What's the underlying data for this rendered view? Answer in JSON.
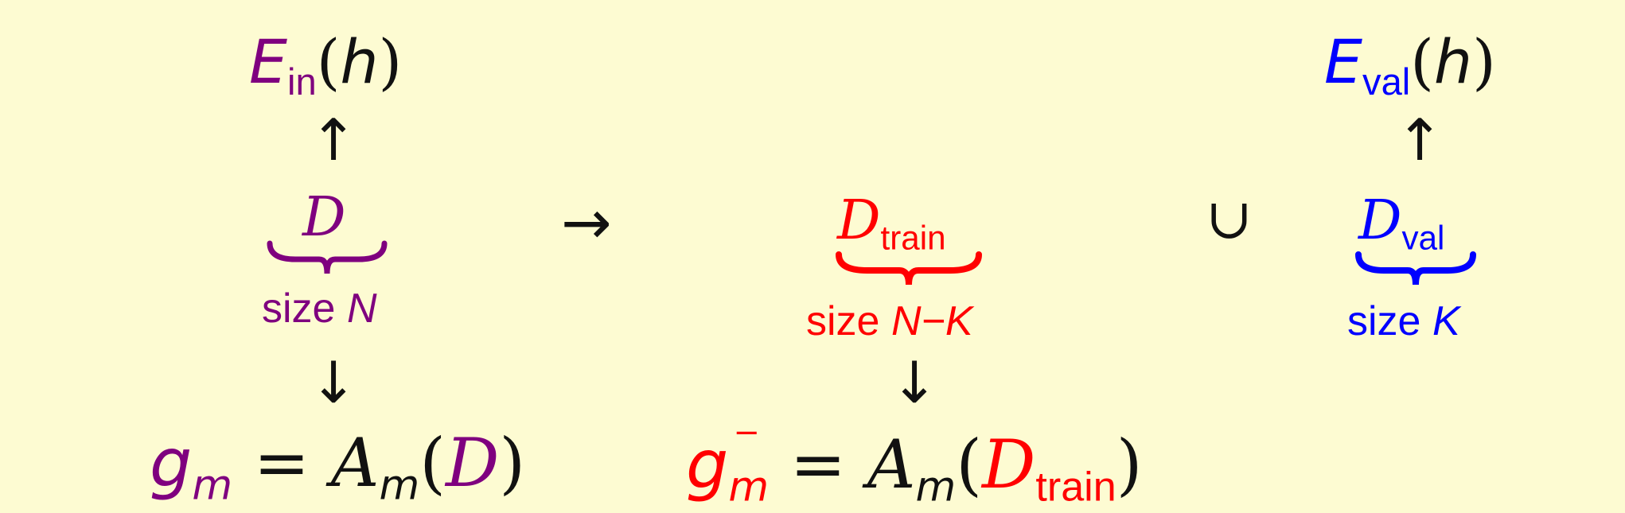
{
  "left": {
    "top_E": "E",
    "top_sub": "in",
    "top_arg": "h",
    "D": "D",
    "size_word": "size",
    "size_var": "N",
    "bottom_g": "g",
    "bottom_m": "m",
    "bottom_A": "A",
    "bottom_Am": "m",
    "bottom_D": "D"
  },
  "middle": {
    "D": "D",
    "D_sub": "train",
    "size_word": "size",
    "size_var": "N−K",
    "bottom_g": "g",
    "bottom_m": "m",
    "bottom_minus": "−",
    "bottom_A": "A",
    "bottom_Am": "m",
    "bottom_D": "D",
    "bottom_Dsub": "train"
  },
  "right": {
    "top_E": "E",
    "top_sub": "val",
    "top_arg": "h",
    "D": "D",
    "D_sub": "val",
    "size_word": "size",
    "size_var": "K"
  },
  "symbols": {
    "up_arrow": "↑",
    "down_arrow": "↓",
    "right_arrow": "→",
    "union": "∪",
    "equals": "=",
    "open_paren": "(",
    "close_paren": ")"
  },
  "colors": {
    "background": "#fdfbd2",
    "full_data": "#7f007f",
    "train": "#ff0000",
    "validation": "#0000ff"
  }
}
